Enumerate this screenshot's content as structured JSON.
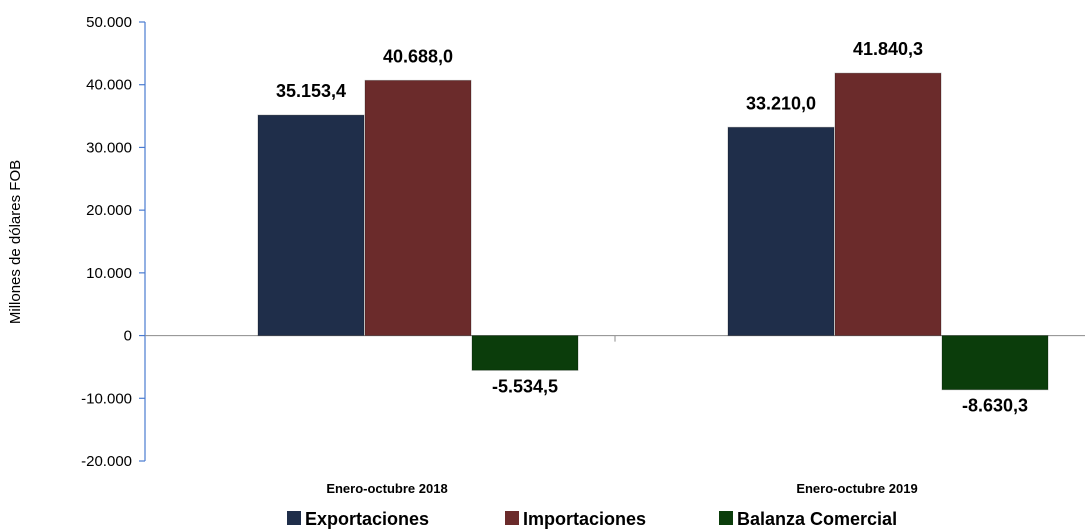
{
  "chart_data": {
    "type": "bar",
    "ylabel": "Millones de dólares FOB",
    "xlabel": "",
    "ylim": [
      -20000,
      50000
    ],
    "yticks": [
      50000,
      40000,
      30000,
      20000,
      10000,
      0,
      -10000,
      -20000
    ],
    "ytick_labels": [
      "50.000",
      "40.000",
      "30.000",
      "20.000",
      "10.000",
      "0",
      "-10.000",
      "-20.000"
    ],
    "categories": [
      "Enero-octubre 2018",
      "Enero-octubre 2019"
    ],
    "series": [
      {
        "name": "Exportaciones",
        "color": "#1f2e4a",
        "values": [
          35153.4,
          33210.0
        ],
        "labels": [
          "35.153,4",
          "33.210,0"
        ]
      },
      {
        "name": "Importaciones",
        "color": "#6b2b2b",
        "values": [
          40688.0,
          41840.3
        ],
        "labels": [
          "40.688,0",
          "41.840,3"
        ]
      },
      {
        "name": "Balanza Comercial",
        "color": "#0b3d0b",
        "values": [
          -5534.5,
          -8630.3
        ],
        "labels": [
          "-5.534,5",
          "-8.630,3"
        ]
      }
    ],
    "grid": false,
    "legend_position": "bottom"
  }
}
